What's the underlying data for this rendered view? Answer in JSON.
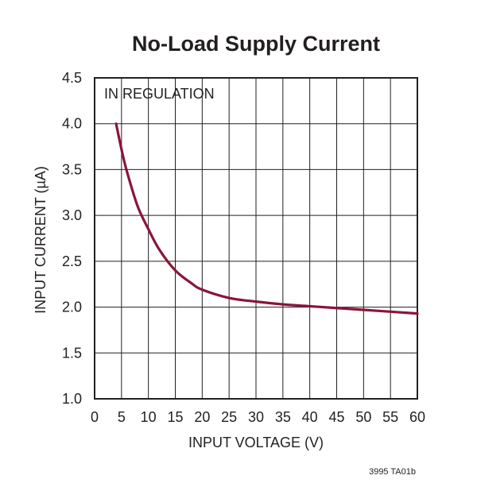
{
  "chart_data": {
    "type": "line",
    "title": "No-Load Supply Current",
    "xlabel": "INPUT VOLTAGE (V)",
    "ylabel": "INPUT CURRENT (µA)",
    "xlim": [
      0,
      60
    ],
    "ylim": [
      1.0,
      4.5
    ],
    "xticks": [
      0,
      5,
      10,
      15,
      20,
      25,
      30,
      35,
      40,
      45,
      50,
      55,
      60
    ],
    "yticks": [
      1.0,
      1.5,
      2.0,
      2.5,
      3.0,
      3.5,
      4.0,
      4.5
    ],
    "grid": true,
    "annotation": "IN REGULATION",
    "figure_id": "3995 TA01b",
    "series": [
      {
        "name": "Input Current",
        "color": "#8a1538",
        "x": [
          4,
          5,
          6,
          8,
          10,
          12,
          15,
          18,
          20,
          25,
          30,
          35,
          40,
          45,
          50,
          55,
          60
        ],
        "y": [
          4.0,
          3.72,
          3.48,
          3.1,
          2.85,
          2.63,
          2.4,
          2.26,
          2.19,
          2.1,
          2.06,
          2.03,
          2.01,
          1.99,
          1.97,
          1.95,
          1.93
        ]
      }
    ]
  }
}
